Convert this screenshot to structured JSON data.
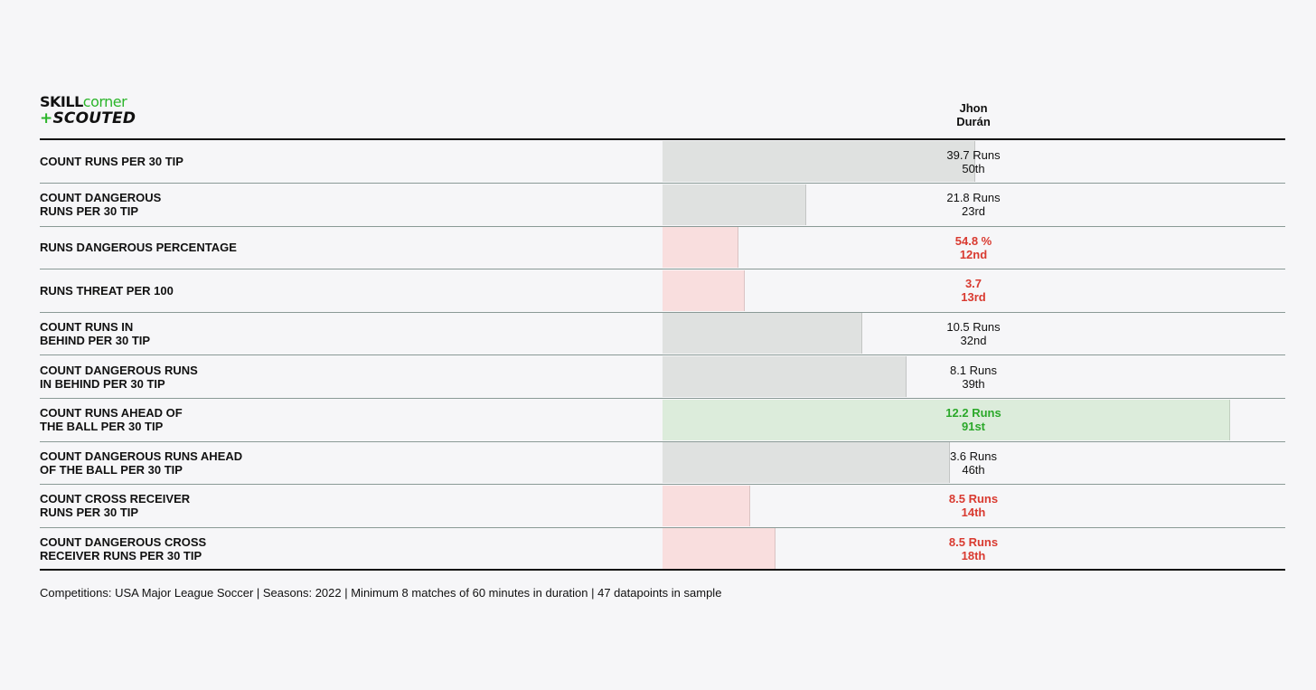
{
  "logo": {
    "word1": "SKILL",
    "word2": "corner",
    "plus": "+",
    "word3": "SCOUTED"
  },
  "player": {
    "name_line1": "Jhon",
    "name_line2": "Durán"
  },
  "colors": {
    "neutral_bar": "#dfe1e0",
    "low_bar": "#f9dede",
    "high_bar": "#dcecdb",
    "low_text": "#d93a30",
    "high_text": "#2ba82a",
    "accent": "#2bb52a"
  },
  "chart_data": {
    "type": "bar",
    "orientation": "horizontal",
    "metric": "percentile",
    "xlim": [
      0,
      100
    ],
    "categories": [
      "COUNT RUNS PER 30 TIP",
      "COUNT DANGEROUS\nRUNS PER 30 TIP",
      "RUNS DANGEROUS PERCENTAGE",
      "RUNS THREAT PER 100",
      "COUNT RUNS IN\nBEHIND PER 30 TIP",
      "COUNT DANGEROUS RUNS\nIN BEHIND PER 30 TIP",
      "COUNT RUNS AHEAD OF\nTHE BALL PER 30 TIP",
      "COUNT DANGEROUS RUNS AHEAD\nOF THE BALL PER 30 TIP",
      "COUNT CROSS RECEIVER\nRUNS PER 30 TIP",
      "COUNT DANGEROUS CROSS\nRECEIVER RUNS PER 30 TIP"
    ],
    "values": [
      50,
      23,
      12,
      13,
      32,
      39,
      91,
      46,
      14,
      18
    ],
    "value_labels": [
      "39.7 Runs",
      "21.8 Runs",
      "54.8 %",
      "3.7",
      "10.5 Runs",
      "8.1 Runs",
      "12.2 Runs",
      "3.6 Runs",
      "8.5 Runs",
      "8.5 Runs"
    ],
    "rank_labels": [
      "50th",
      "23rd",
      "12nd",
      "13rd",
      "32nd",
      "39th",
      "91st",
      "46th",
      "14th",
      "18th"
    ],
    "tiers": [
      "neutral",
      "neutral",
      "low",
      "low",
      "neutral",
      "neutral",
      "high",
      "neutral",
      "low",
      "low"
    ]
  },
  "footnote": "Competitions: USA Major League Soccer | Seasons: 2022 | Minimum 8 matches of 60 minutes in duration | 47 datapoints in sample"
}
